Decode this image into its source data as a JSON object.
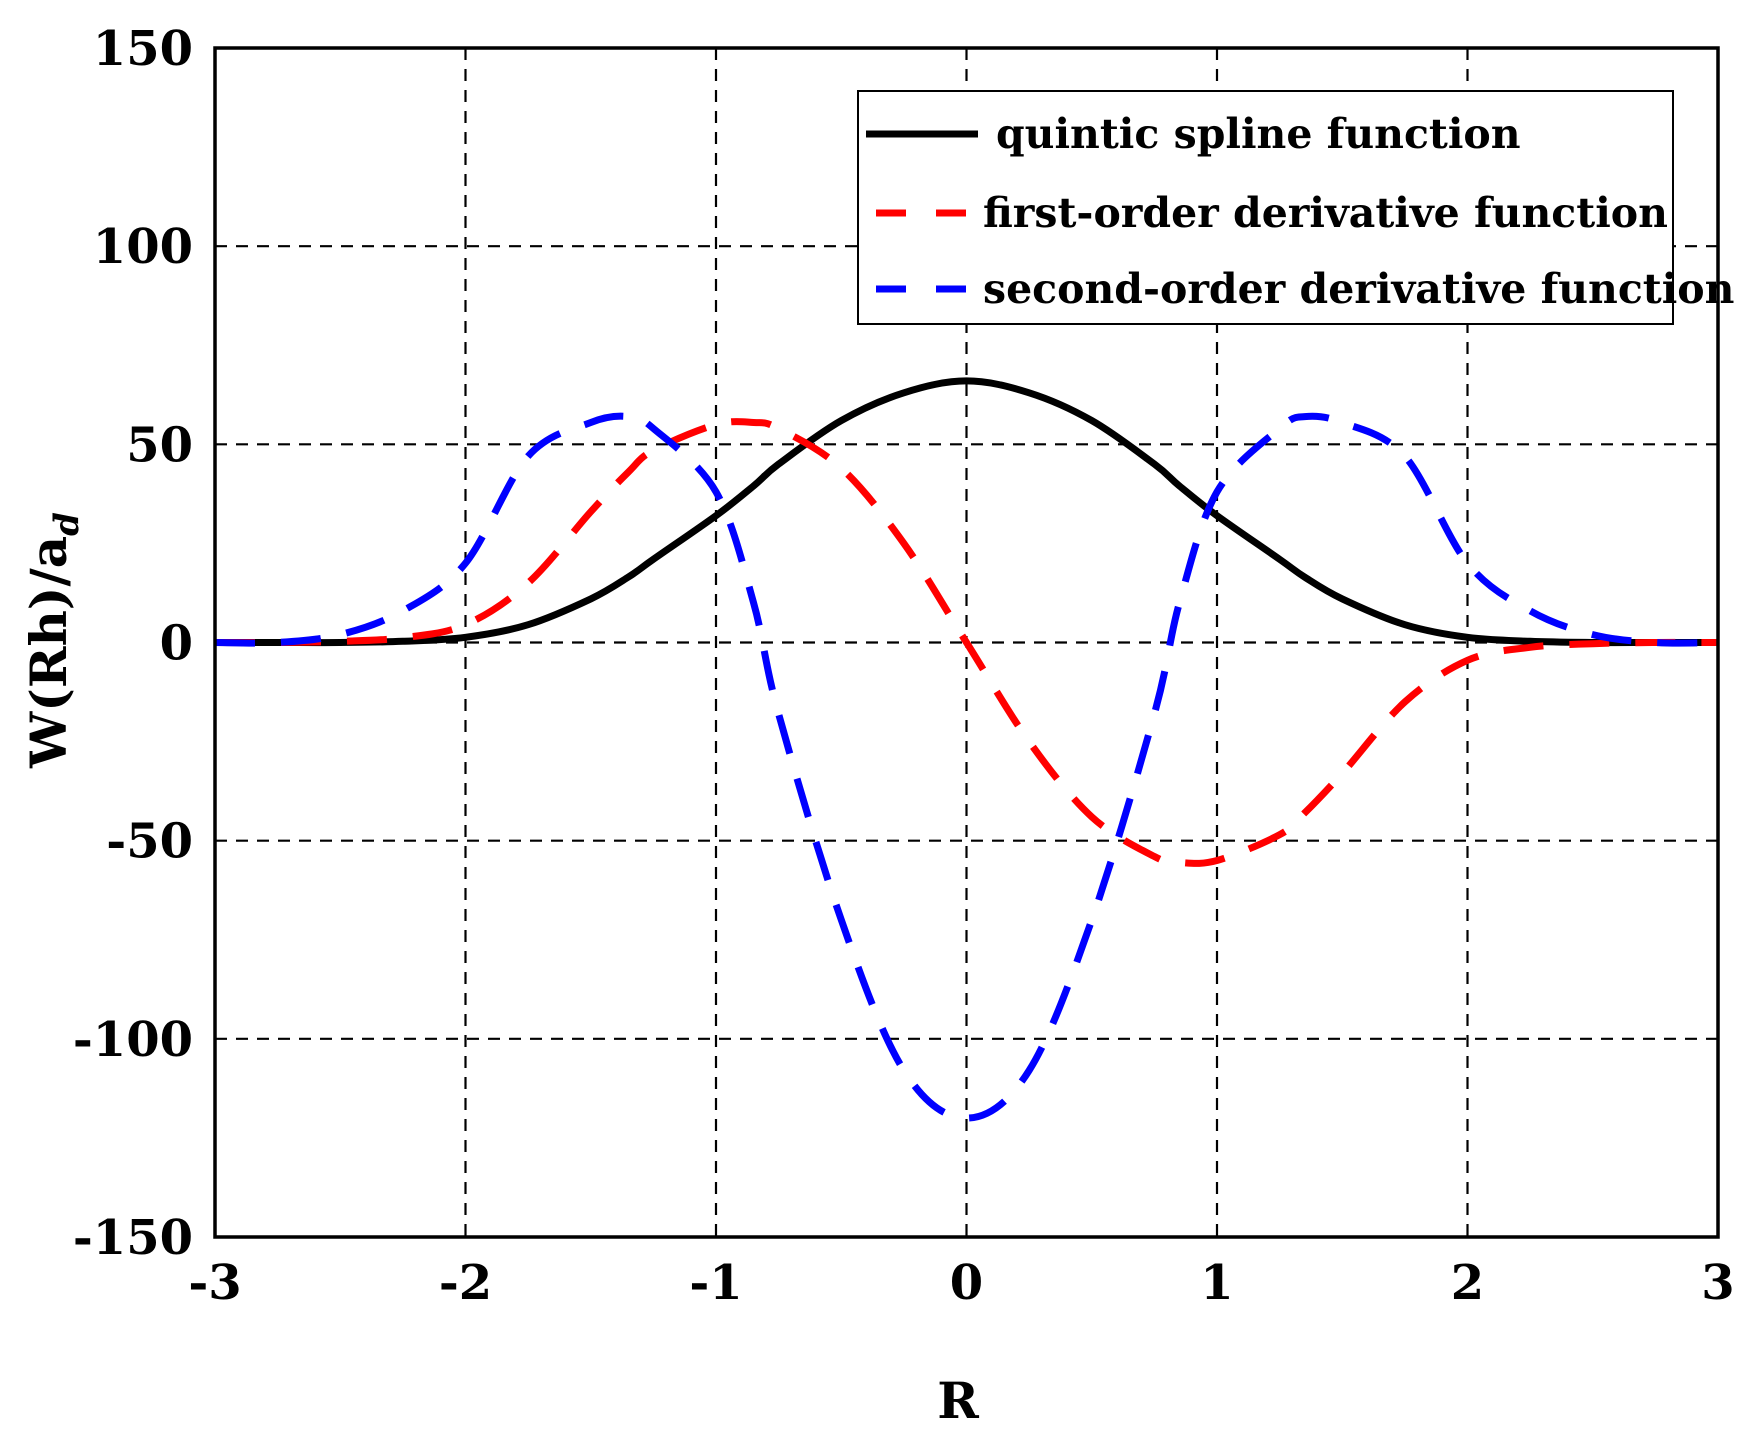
{
  "chart_data": {
    "type": "line",
    "xlabel": "R",
    "ylabel_parts": [
      "W(R",
      "h)/",
      "a",
      "d"
    ],
    "xlim": [
      -3,
      3
    ],
    "ylim": [
      -150,
      150
    ],
    "x_ticks": [
      -3,
      -2,
      -1,
      0,
      1,
      2,
      3
    ],
    "y_ticks": [
      -150,
      -100,
      -50,
      0,
      50,
      100,
      150
    ],
    "x_tick_labels": [
      "-3",
      "-2",
      "-1",
      "0",
      "1",
      "2",
      "3"
    ],
    "y_tick_labels": [
      "-150",
      "-100",
      "-50",
      "0",
      "50",
      "100",
      "150"
    ],
    "grid": true,
    "legend_position": "top-right",
    "x": [
      -3.0,
      -2.75,
      -2.5,
      -2.25,
      -2.0,
      -1.75,
      -1.5,
      -1.35,
      -1.25,
      -1.0,
      -0.85,
      -0.75,
      -0.5,
      -0.25,
      0.0,
      0.25,
      0.5,
      0.75,
      0.85,
      1.0,
      1.25,
      1.35,
      1.5,
      1.75,
      2.0,
      2.25,
      2.5,
      2.75,
      3.0
    ],
    "series": [
      {
        "name": "quintic spline function",
        "color": "#000000",
        "style": "solid",
        "values": [
          0.0,
          0.0,
          0.0,
          0.3,
          1.3,
          4.5,
          11.0,
          16.5,
          21.0,
          32.0,
          39.5,
          45.0,
          56.0,
          63.0,
          66.0,
          63.0,
          56.0,
          45.0,
          39.5,
          32.0,
          21.0,
          16.5,
          11.0,
          4.5,
          1.3,
          0.3,
          0.0,
          0.0,
          0.0
        ]
      },
      {
        "name": "first-order derivative function",
        "color": "#ff0000",
        "style": "dashed",
        "values": [
          0.0,
          0.0,
          0.3,
          1.2,
          4.5,
          15.0,
          33.0,
          43.0,
          48.5,
          55.0,
          55.5,
          54.0,
          44.0,
          25.0,
          0.0,
          -25.0,
          -44.0,
          -54.0,
          -55.5,
          -55.0,
          -48.5,
          -43.0,
          -33.0,
          -15.0,
          -4.5,
          -1.2,
          -0.3,
          0.0,
          0.0
        ]
      },
      {
        "name": "second-order derivative function",
        "color": "#0000ff",
        "style": "dashed",
        "values": [
          0.0,
          0.0,
          2.0,
          8.0,
          20.0,
          47.0,
          55.5,
          57.0,
          54.0,
          38.0,
          10.0,
          -18.0,
          -70.0,
          -108.0,
          -120.0,
          -108.0,
          -70.0,
          -18.0,
          10.0,
          38.0,
          54.0,
          57.0,
          55.5,
          47.0,
          20.0,
          8.0,
          2.0,
          0.0,
          0.0
        ]
      }
    ]
  }
}
